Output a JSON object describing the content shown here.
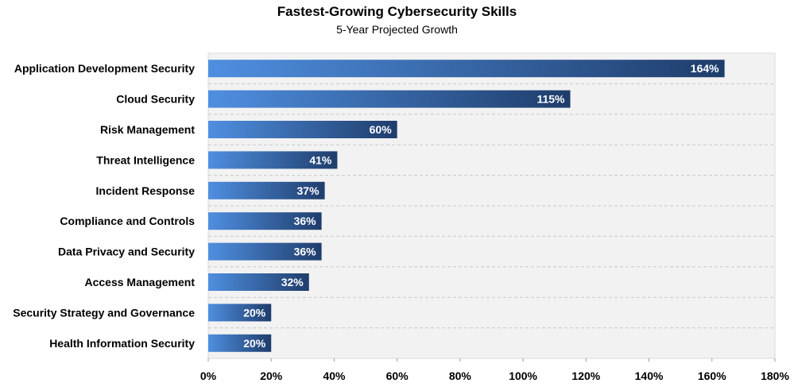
{
  "chart_data": {
    "type": "bar",
    "orientation": "horizontal",
    "title": "Fastest-Growing Cybersecurity Skills",
    "subtitle": "5-Year Projected Growth",
    "categories": [
      "Application Development Security",
      "Cloud Security",
      "Risk Management",
      "Threat Intelligence",
      "Incident Response",
      "Compliance and Controls",
      "Data Privacy and Security",
      "Access Management",
      "Security Strategy and Governance",
      "Health Information Security"
    ],
    "values": [
      164,
      115,
      60,
      41,
      37,
      36,
      36,
      32,
      20,
      20
    ],
    "data_labels": [
      "164%",
      "115%",
      "60%",
      "41%",
      "37%",
      "36%",
      "36%",
      "32%",
      "20%",
      "20%"
    ],
    "xlim": [
      0,
      180
    ],
    "x_ticks": [
      0,
      20,
      40,
      60,
      80,
      100,
      120,
      140,
      160,
      180
    ],
    "x_tick_labels": [
      "0%",
      "20%",
      "40%",
      "60%",
      "80%",
      "100%",
      "120%",
      "140%",
      "160%",
      "180%"
    ],
    "grid": true,
    "colors": {
      "bar_light": "#4f8fe0",
      "bar_dark": "#1f3d6b",
      "plot_background": "#f2f2f2",
      "grid": "#c8c8c8"
    }
  }
}
